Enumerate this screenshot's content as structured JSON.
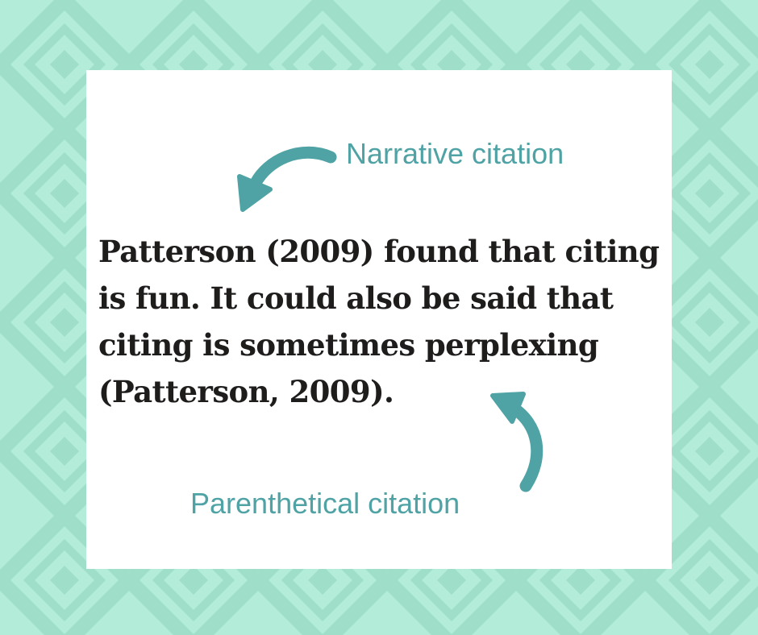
{
  "labels": {
    "narrative": "Narrative citation",
    "parenthetical": "Parenthetical citation"
  },
  "body": {
    "text": "Patterson (2009) found that citing is fun. It could also be said that citing is sometimes perplexing (Patterson, 2009)."
  },
  "colors": {
    "background": "#b3ecd9",
    "pattern_stroke": "#9bdcc6",
    "card": "#ffffff",
    "accent": "#4fa3a5",
    "text": "#1f1c1c"
  }
}
